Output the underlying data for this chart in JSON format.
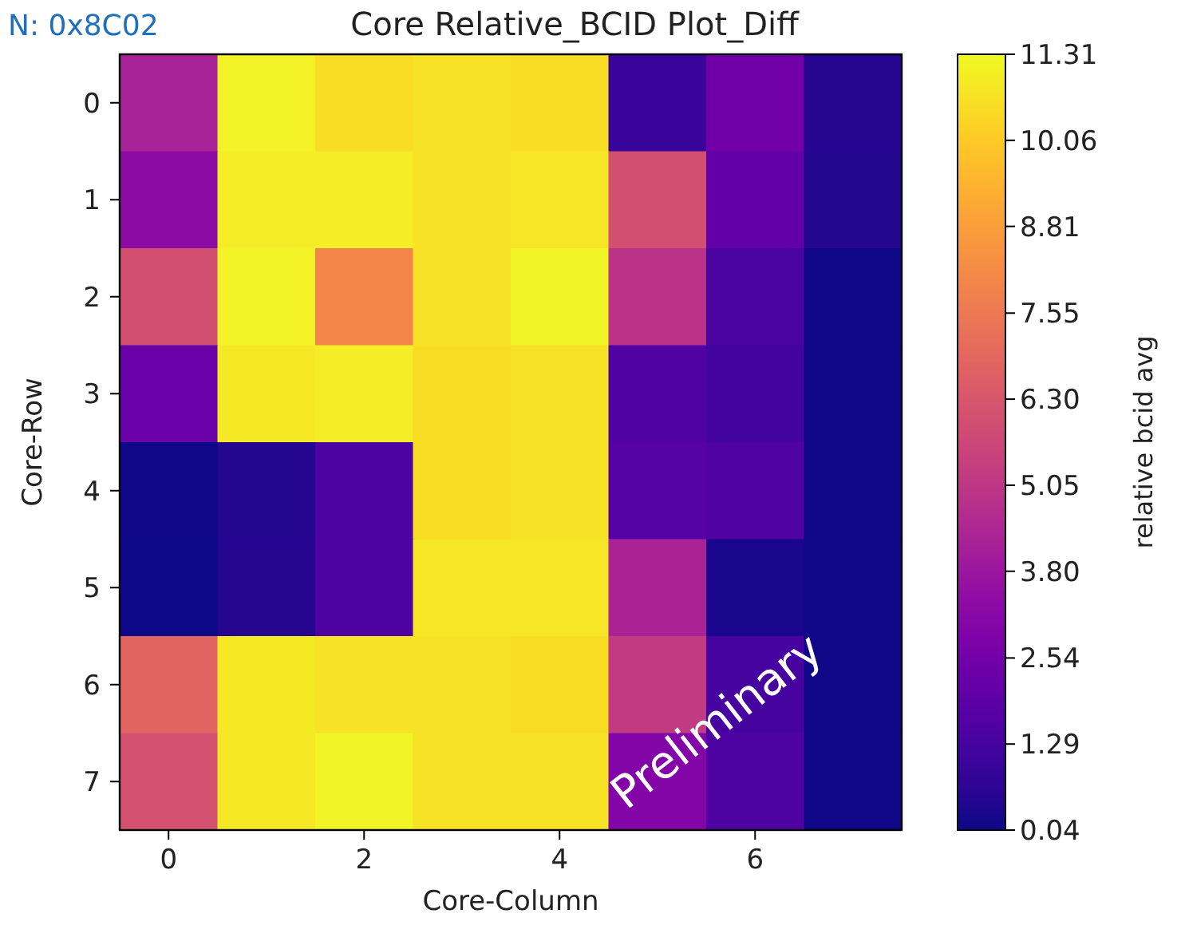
{
  "chart_data": {
    "type": "heatmap",
    "title": "Core Relative_BCID Plot_Diff",
    "xlabel": "Core-Column",
    "ylabel": "Core-Row",
    "clabel": "relative bcid avg",
    "annotations": [
      "N: 0x8C02",
      "Preliminary"
    ],
    "categories": [
      "0",
      null,
      "2",
      null,
      "4",
      null,
      "6",
      null
    ],
    "y_categories": [
      "0",
      "1",
      "2",
      "3",
      "4",
      "5",
      "6",
      "7"
    ],
    "cells": [
      [
        4.2,
        11.1,
        10.6,
        10.7,
        10.6,
        0.95,
        2.5,
        0.5
      ],
      [
        3.3,
        11.0,
        11.0,
        10.7,
        10.8,
        6.0,
        2.1,
        0.45
      ],
      [
        6.0,
        11.1,
        8.0,
        10.7,
        11.2,
        4.9,
        1.4,
        0.1
      ],
      [
        2.3,
        10.9,
        11.0,
        10.6,
        10.7,
        1.6,
        1.2,
        0.1
      ],
      [
        0.1,
        0.45,
        1.5,
        10.6,
        10.7,
        1.7,
        1.6,
        0.1
      ],
      [
        0.05,
        0.5,
        1.5,
        10.8,
        10.8,
        4.3,
        0.25,
        0.1
      ],
      [
        6.8,
        10.9,
        10.7,
        10.7,
        10.6,
        5.2,
        1.3,
        0.1
      ],
      [
        6.1,
        10.9,
        11.15,
        10.7,
        10.7,
        3.0,
        1.5,
        0.1
      ]
    ],
    "clim": [
      0.04,
      11.31
    ],
    "cticks": [
      {
        "value": 0.04,
        "label": "0.04"
      },
      {
        "value": 1.29,
        "label": "1.29"
      },
      {
        "value": 2.54,
        "label": "2.54"
      },
      {
        "value": 3.8,
        "label": "3.80"
      },
      {
        "value": 5.05,
        "label": "5.05"
      },
      {
        "value": 6.3,
        "label": "6.30"
      },
      {
        "value": 7.55,
        "label": "7.55"
      },
      {
        "value": 8.81,
        "label": "8.81"
      },
      {
        "value": 10.06,
        "label": "10.06"
      },
      {
        "value": 11.31,
        "label": "11.31"
      }
    ]
  }
}
